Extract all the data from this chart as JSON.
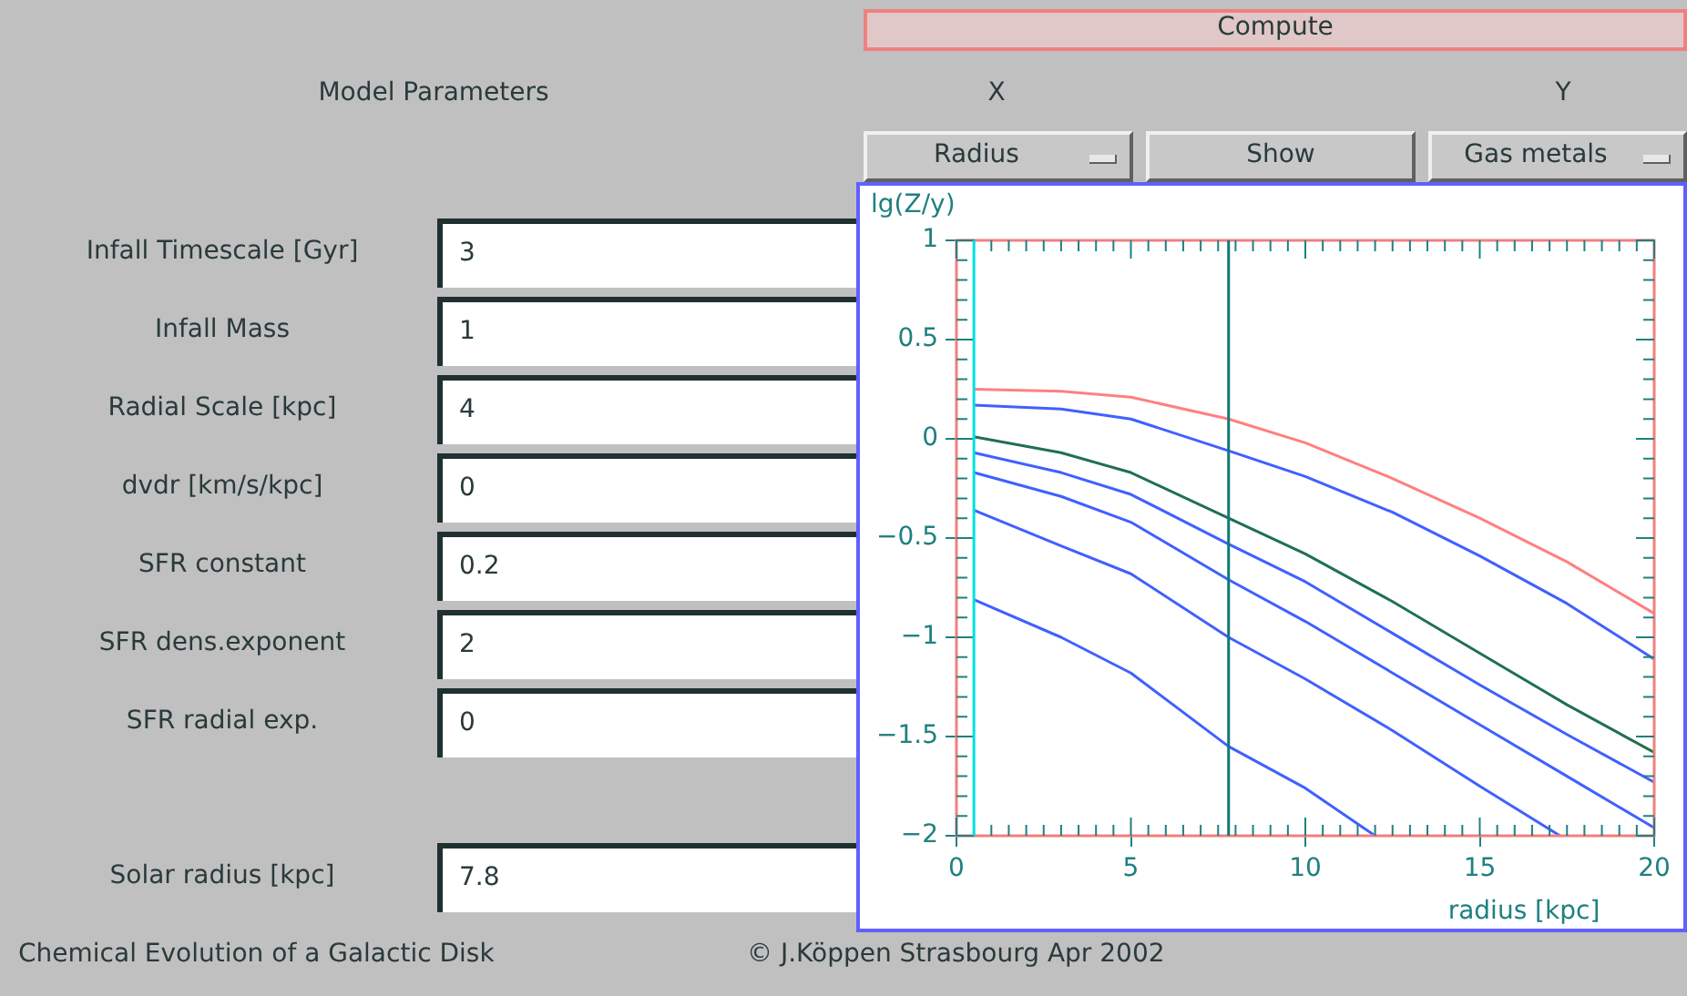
{
  "chart_data": {
    "type": "line",
    "xlabel": "radius [kpc]",
    "ylabel": "lg(Z/y)",
    "xlim": [
      0,
      20
    ],
    "xticks": [
      0,
      5,
      10,
      15,
      20
    ],
    "ylim": [
      -2,
      1
    ],
    "yticks": [
      -2,
      -1.5,
      -1,
      -0.5,
      0,
      0.5,
      1
    ],
    "grid": false,
    "legend": false,
    "marker": "none",
    "line_style": "solid",
    "ref_lines": [
      {
        "axis": "x",
        "value": 0.5,
        "color": "#00e0e0"
      },
      {
        "axis": "x",
        "value": 7.8,
        "color": "#107878"
      }
    ],
    "series": [
      {
        "color": "#ff8080",
        "x": [
          0.5,
          3,
          5,
          7.8,
          10,
          12.5,
          15,
          17.5,
          20
        ],
        "values": [
          0.25,
          0.24,
          0.21,
          0.1,
          -0.02,
          -0.2,
          -0.4,
          -0.62,
          -0.88
        ]
      },
      {
        "color": "#4060ff",
        "x": [
          0.5,
          3,
          5,
          7.8,
          10,
          12.5,
          15,
          17.5,
          20
        ],
        "values": [
          0.17,
          0.15,
          0.1,
          -0.06,
          -0.19,
          -0.37,
          -0.59,
          -0.83,
          -1.11
        ]
      },
      {
        "color": "#207050",
        "x": [
          0.5,
          3,
          5,
          7.8,
          10,
          12.5,
          15,
          17.5,
          20
        ],
        "values": [
          0.01,
          -0.07,
          -0.17,
          -0.4,
          -0.58,
          -0.82,
          -1.08,
          -1.34,
          -1.58
        ]
      },
      {
        "color": "#4060ff",
        "x": [
          0.5,
          3,
          5,
          7.8,
          10,
          12.5,
          15,
          17.5,
          20
        ],
        "values": [
          -0.07,
          -0.17,
          -0.28,
          -0.53,
          -0.72,
          -0.98,
          -1.24,
          -1.49,
          -1.73
        ]
      },
      {
        "color": "#4060ff",
        "x": [
          0.5,
          3,
          5,
          7.8,
          10,
          12.5,
          15,
          17.5,
          20
        ],
        "values": [
          -0.17,
          -0.29,
          -0.42,
          -0.71,
          -0.92,
          -1.18,
          -1.44,
          -1.7,
          -1.96
        ]
      },
      {
        "color": "#4060ff",
        "x": [
          0.5,
          3,
          5,
          7.8,
          10,
          12.5,
          15,
          17.3
        ],
        "values": [
          -0.36,
          -0.54,
          -0.68,
          -1,
          -1.21,
          -1.47,
          -1.75,
          -2
        ]
      },
      {
        "color": "#4060ff",
        "x": [
          0.5,
          3,
          5,
          7.8,
          10,
          12
        ],
        "values": [
          -0.81,
          -1,
          -1.18,
          -1.55,
          -1.76,
          -2
        ]
      }
    ],
    "annotations": [
      "Compute",
      "Model Parameters",
      "X",
      "Y",
      "Radius",
      "Show",
      "Gas metals",
      "Infall Timescale [Gyr]",
      "3",
      "Infall Mass",
      "1",
      "Radial Scale [kpc]",
      "4",
      "dvdr [km/s/kpc]",
      "0",
      "SFR constant",
      "0.2",
      "SFR dens.exponent",
      "2",
      "SFR radial exp.",
      "0",
      "Solar radius [kpc]",
      "7.8",
      "Chemical Evolution of a Galactic Disk",
      "© J.Köppen  Strasbourg  Apr 2002"
    ]
  }
}
